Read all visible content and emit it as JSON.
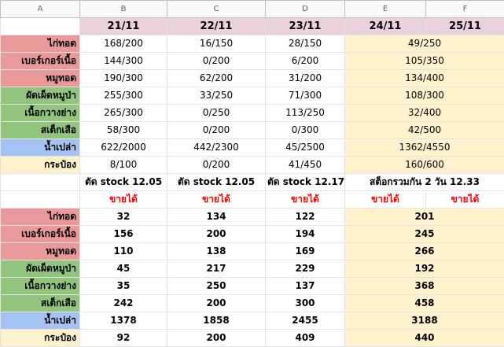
{
  "column_headers": [
    "A",
    "B",
    "C",
    "D",
    "E",
    "F"
  ],
  "dates": [
    "21/11",
    "22/11",
    "23/11",
    "24/11",
    "25/11"
  ],
  "section1": [
    {
      "label": "ไก่ทอด",
      "color": "pink",
      "b": "168/200",
      "c": "16/150",
      "d": "28/150",
      "ef": "49/250"
    },
    {
      "label": "เบอร์เกอร์เนื้อ",
      "color": "pink",
      "b": "144/300",
      "c": "0/200",
      "d": "6/200",
      "ef": "105/350"
    },
    {
      "label": "หมูทอด",
      "color": "pink",
      "b": "190/300",
      "c": "62/200",
      "d": "31/200",
      "ef": "134/400"
    },
    {
      "label": "ผัดเผ็ดหมูป่า",
      "color": "green",
      "b": "255/300",
      "c": "33/250",
      "d": "71/300",
      "ef": "108/300"
    },
    {
      "label": "เนื้อกวางย่าง",
      "color": "green",
      "b": "265/300",
      "c": "0/250",
      "d": "113/250",
      "ef": "32/400"
    },
    {
      "label": "สเต็กเสือ",
      "color": "green",
      "b": "58/300",
      "c": "0/200",
      "d": "0/300",
      "ef": "42/500"
    },
    {
      "label": "น้ำเปล่า",
      "color": "blue",
      "b": "622/2000",
      "c": "442/2300",
      "d": "45/2500",
      "ef": "1362/4550"
    },
    {
      "label": "กระป๋อง",
      "color": "yellow",
      "b": "8/100",
      "c": "0/200",
      "d": "41/450",
      "ef": "160/600"
    }
  ],
  "captions": {
    "b": "ตัด stock 12.05",
    "c": "ตัด stock 12.05",
    "d": "ตัด stock 12.17",
    "ef": "สต็อกรวมกัน 2 วัน 12.33"
  },
  "sellable": "ขายได้",
  "section2": [
    {
      "label": "ไก่ทอด",
      "color": "pink",
      "b": "32",
      "c": "134",
      "d": "122",
      "ef": "201"
    },
    {
      "label": "เบอร์เกอร์เนื้อ",
      "color": "pink",
      "b": "156",
      "c": "200",
      "d": "194",
      "ef": "245"
    },
    {
      "label": "หมูทอด",
      "color": "pink",
      "b": "110",
      "c": "138",
      "d": "169",
      "ef": "266"
    },
    {
      "label": "ผัดเผ็ดหมูป่า",
      "color": "green",
      "b": "45",
      "c": "217",
      "d": "229",
      "ef": "192"
    },
    {
      "label": "เนื้อกวางย่าง",
      "color": "green",
      "b": "35",
      "c": "250",
      "d": "137",
      "ef": "368"
    },
    {
      "label": "สเต็กเสือ",
      "color": "green",
      "b": "242",
      "c": "200",
      "d": "300",
      "ef": "458"
    },
    {
      "label": "น้ำเปล่า",
      "color": "blue",
      "b": "1378",
      "c": "1858",
      "d": "2455",
      "ef": "3188"
    },
    {
      "label": "กระป๋อง",
      "color": "yellow",
      "b": "92",
      "c": "200",
      "d": "409",
      "ef": "440"
    }
  ]
}
